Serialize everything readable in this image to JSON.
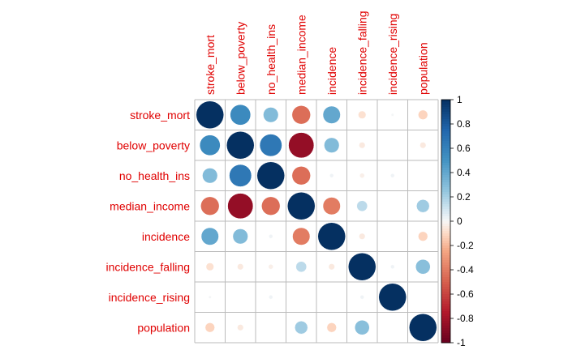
{
  "chart_data": {
    "type": "heatmap",
    "subtype": "correlation-circle-matrix",
    "variables": [
      "stroke_mort",
      "below_poverty",
      "no_health_ins",
      "median_income",
      "incidence",
      "incidence_falling",
      "incidence_rising",
      "population"
    ],
    "matrix": [
      [
        1.0,
        0.55,
        0.3,
        -0.45,
        0.4,
        -0.08,
        0.01,
        -0.12
      ],
      [
        0.55,
        1.0,
        0.65,
        -0.85,
        0.3,
        -0.05,
        0.0,
        -0.05
      ],
      [
        0.3,
        0.65,
        1.0,
        -0.45,
        0.02,
        -0.03,
        0.02,
        0.0
      ],
      [
        -0.45,
        -0.85,
        -0.45,
        1.0,
        -0.4,
        0.15,
        0.0,
        0.22
      ],
      [
        0.4,
        0.3,
        0.02,
        -0.4,
        1.0,
        -0.05,
        0.0,
        -0.12
      ],
      [
        -0.08,
        -0.05,
        -0.03,
        0.15,
        -0.05,
        1.0,
        0.02,
        0.28
      ],
      [
        0.01,
        0.0,
        0.02,
        0.0,
        0.0,
        0.02,
        1.0,
        0.0
      ],
      [
        -0.12,
        -0.05,
        0.0,
        0.22,
        -0.12,
        0.28,
        0.0,
        1.0
      ]
    ],
    "colorbar_ticks": [
      "1",
      "0.8",
      "0.6",
      "0.4",
      "0.2",
      "0",
      "-0.2",
      "-0.4",
      "-0.6",
      "-0.8",
      "-1"
    ],
    "color_range": [
      -1,
      1
    ],
    "colors": {
      "positive": "#053061",
      "neutral": "#f7f7f7",
      "negative": "#67001f",
      "label": "#e00000",
      "grid": "#bbbbbb"
    },
    "legend": "right",
    "grid": true
  }
}
